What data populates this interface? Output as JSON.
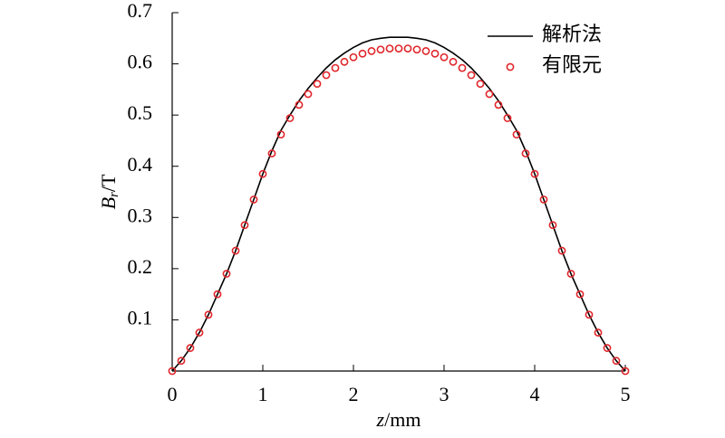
{
  "chart_data": {
    "type": "line_scatter",
    "xlabel": {
      "symbol": "z",
      "unit": "/mm"
    },
    "ylabel": {
      "symbol": "B",
      "subscript": "r",
      "unit": "/T"
    },
    "xlim": [
      0,
      5
    ],
    "ylim": [
      0,
      0.7
    ],
    "xticks": [
      0,
      1,
      2,
      3,
      4,
      5
    ],
    "yticks": [
      0.1,
      0.2,
      0.3,
      0.4,
      0.5,
      0.6,
      0.7
    ],
    "legend": "upper right",
    "x": [
      0,
      0.1,
      0.2,
      0.3,
      0.4,
      0.5,
      0.6,
      0.7,
      0.8,
      0.9,
      1.0,
      1.1,
      1.2,
      1.3,
      1.4,
      1.5,
      1.6,
      1.7,
      1.8,
      1.9,
      2.0,
      2.1,
      2.2,
      2.3,
      2.4,
      2.5,
      2.6,
      2.7,
      2.8,
      2.9,
      3.0,
      3.1,
      3.2,
      3.3,
      3.4,
      3.5,
      3.6,
      3.7,
      3.8,
      3.9,
      4.0,
      4.1,
      4.2,
      4.3,
      4.4,
      4.5,
      4.6,
      4.7,
      4.8,
      4.9,
      5.0
    ],
    "series": [
      {
        "name": "解析法",
        "kind": "line",
        "color": "#000000",
        "values": [
          0,
          0.02,
          0.045,
          0.075,
          0.11,
          0.15,
          0.19,
          0.235,
          0.285,
          0.335,
          0.385,
          0.43,
          0.47,
          0.5,
          0.528,
          0.552,
          0.573,
          0.592,
          0.608,
          0.621,
          0.632,
          0.641,
          0.647,
          0.65,
          0.652,
          0.652,
          0.652,
          0.65,
          0.647,
          0.641,
          0.632,
          0.621,
          0.608,
          0.592,
          0.573,
          0.552,
          0.528,
          0.5,
          0.47,
          0.43,
          0.385,
          0.335,
          0.285,
          0.235,
          0.19,
          0.15,
          0.11,
          0.075,
          0.045,
          0.02,
          0
        ]
      },
      {
        "name": "有限元",
        "kind": "scatter",
        "color": "#e0262b",
        "values": [
          0,
          0.02,
          0.045,
          0.075,
          0.11,
          0.15,
          0.19,
          0.235,
          0.285,
          0.335,
          0.385,
          0.425,
          0.462,
          0.494,
          0.52,
          0.541,
          0.561,
          0.578,
          0.592,
          0.604,
          0.613,
          0.62,
          0.625,
          0.628,
          0.63,
          0.63,
          0.63,
          0.628,
          0.625,
          0.62,
          0.613,
          0.604,
          0.592,
          0.578,
          0.561,
          0.541,
          0.52,
          0.494,
          0.462,
          0.425,
          0.385,
          0.335,
          0.285,
          0.235,
          0.19,
          0.15,
          0.11,
          0.075,
          0.045,
          0.02,
          0
        ]
      }
    ]
  }
}
